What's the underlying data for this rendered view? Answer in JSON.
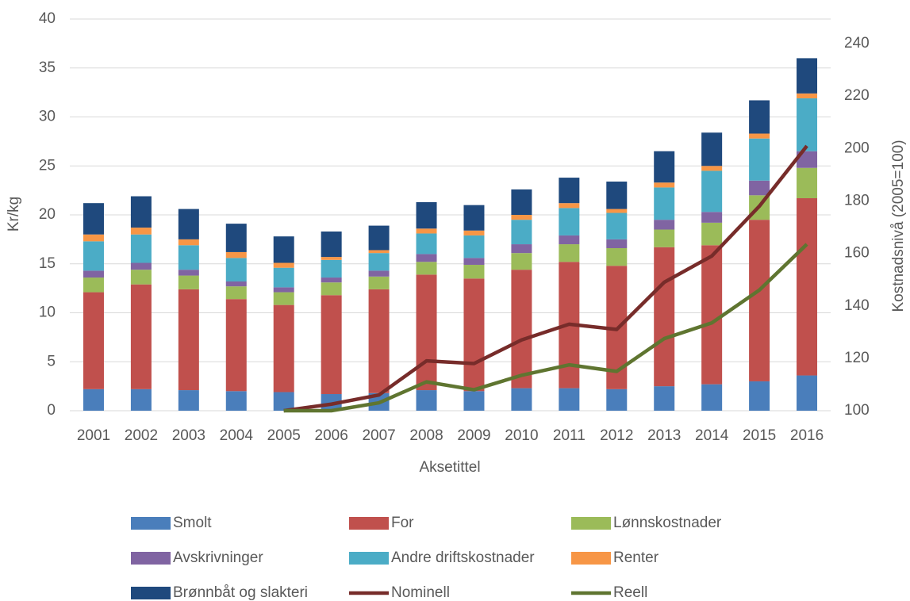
{
  "chart_data": {
    "type": "bar",
    "stacked": true,
    "categories": [
      "2001",
      "2002",
      "2003",
      "2004",
      "2005",
      "2006",
      "2007",
      "2008",
      "2009",
      "2010",
      "2011",
      "2012",
      "2013",
      "2014",
      "2015",
      "2016"
    ],
    "xlabel": "Aksetittel",
    "ylabel": "Kr/kg",
    "y2label": "Kostnadsnivå (2005=100)",
    "ylim": [
      0,
      40
    ],
    "yticks": [
      0,
      5,
      10,
      15,
      20,
      25,
      30,
      35,
      40
    ],
    "y2lim": [
      100,
      249.4
    ],
    "y2ticks": [
      100,
      120,
      140,
      160,
      180,
      200,
      220,
      240
    ],
    "grid": true,
    "series": [
      {
        "name": "Smolt",
        "color": "#4a7ebb",
        "values": [
          2.2,
          2.2,
          2.1,
          2.0,
          1.9,
          1.7,
          1.8,
          2.1,
          2.0,
          2.3,
          2.3,
          2.2,
          2.5,
          2.7,
          3.0,
          3.6
        ]
      },
      {
        "name": "For",
        "color": "#c0504d",
        "values": [
          9.9,
          10.7,
          10.3,
          9.4,
          8.9,
          10.1,
          10.6,
          11.8,
          11.5,
          12.1,
          12.9,
          12.6,
          14.2,
          14.2,
          16.5,
          18.1
        ]
      },
      {
        "name": "Lønnskostnader",
        "color": "#9bbb59",
        "values": [
          1.5,
          1.5,
          1.4,
          1.3,
          1.3,
          1.3,
          1.3,
          1.3,
          1.4,
          1.7,
          1.8,
          1.8,
          1.8,
          2.3,
          2.5,
          3.1
        ]
      },
      {
        "name": "Avskrivninger",
        "color": "#8064a2",
        "values": [
          0.7,
          0.7,
          0.6,
          0.5,
          0.5,
          0.5,
          0.6,
          0.8,
          0.7,
          0.9,
          0.9,
          0.9,
          1.0,
          1.1,
          1.5,
          1.7
        ]
      },
      {
        "name": "Andre driftskostnader",
        "color": "#4bacc6",
        "values": [
          3.0,
          2.9,
          2.5,
          2.4,
          2.0,
          1.8,
          1.8,
          2.1,
          2.3,
          2.5,
          2.8,
          2.7,
          3.3,
          4.2,
          4.3,
          5.4
        ]
      },
      {
        "name": "Renter",
        "color": "#f79646",
        "values": [
          0.7,
          0.7,
          0.6,
          0.6,
          0.5,
          0.3,
          0.3,
          0.5,
          0.5,
          0.5,
          0.5,
          0.4,
          0.5,
          0.5,
          0.5,
          0.5
        ]
      },
      {
        "name": "Brønnbåt og slakteri",
        "color": "#1f497d",
        "values": [
          3.2,
          3.2,
          3.1,
          2.9,
          2.7,
          2.6,
          2.5,
          2.7,
          2.6,
          2.6,
          2.6,
          2.8,
          3.2,
          3.4,
          3.4,
          3.6
        ]
      },
      {
        "name": "Nominell",
        "color": "#772c2a",
        "type": "line",
        "axis": "y2",
        "values": [
          null,
          null,
          null,
          null,
          100,
          102.5,
          106,
          119,
          118,
          127,
          133,
          131,
          149,
          159,
          178,
          201
        ]
      },
      {
        "name": "Reell",
        "color": "#5f7530",
        "type": "line",
        "axis": "y2",
        "values": [
          null,
          null,
          null,
          null,
          100,
          100,
          103,
          111,
          108,
          113.5,
          117.5,
          115,
          127.5,
          133.5,
          146,
          163.5
        ]
      }
    ]
  }
}
